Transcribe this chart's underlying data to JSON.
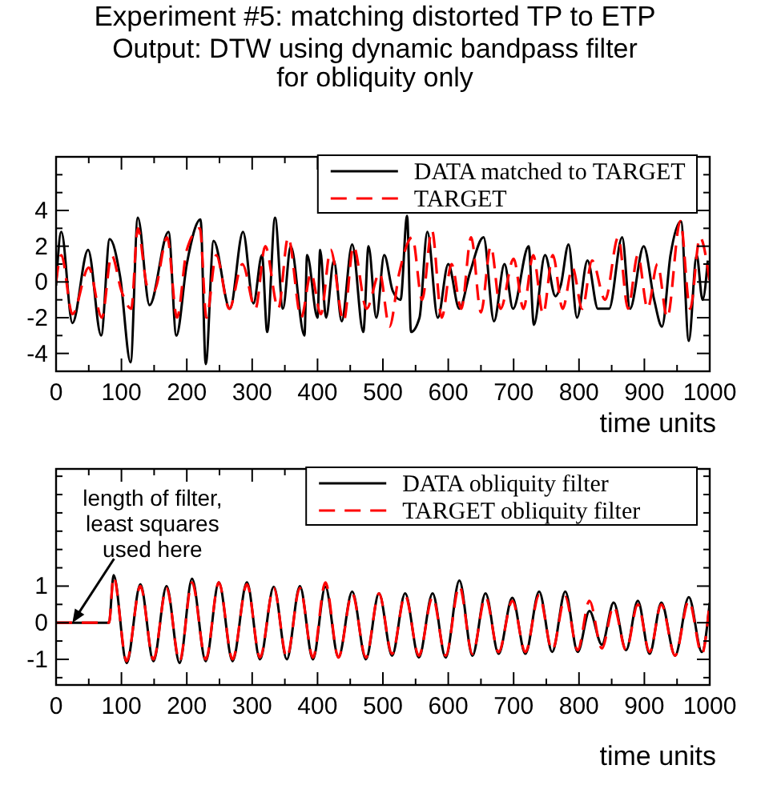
{
  "chart_data": [
    {
      "type": "line",
      "title": "Experiment #5: matching distorted TP to ETP",
      "subtitle": "Output: DTW using dynamic bandpass filter for obliquity only",
      "xlabel": "time units",
      "legend": "top right",
      "xlim": [
        0,
        1000
      ],
      "xticks": [
        0,
        {
          "value": 50,
          "label": null
        },
        100,
        {
          "value": 150,
          "label": null
        },
        200,
        {
          "value": 250,
          "label": null
        },
        300,
        {
          "value": 350,
          "label": null
        },
        400,
        {
          "value": 450,
          "label": null
        },
        500,
        {
          "value": 550,
          "label": null
        },
        600,
        {
          "value": 650,
          "label": null
        },
        700,
        {
          "value": 750,
          "label": null
        },
        800,
        {
          "value": 850,
          "label": null
        },
        900,
        {
          "value": 950,
          "label": null
        },
        1000
      ],
      "ylim": [
        -5,
        7
      ],
      "yticks": [
        {
          "value": -5,
          "label": null
        },
        -4,
        {
          "value": -3,
          "label": null
        },
        -2,
        {
          "value": -1,
          "label": null
        },
        0,
        {
          "value": 1,
          "label": null
        },
        2,
        {
          "value": 3,
          "label": null
        },
        4,
        {
          "value": 5,
          "label": null
        },
        {
          "value": 6,
          "label": null
        }
      ],
      "series": [
        {
          "name": "DATA matched to TARGET",
          "color": "#000000",
          "line_style": "solid",
          "x": [
            0,
            8,
            25,
            49,
            69,
            82,
            98,
            114,
            125,
            143,
            172,
            184,
            200,
            221,
            229,
            241,
            266,
            286,
            302,
            315,
            323,
            335,
            347,
            359,
            380,
            384,
            400,
            404,
            413,
            425,
            437,
            453,
            470,
            478,
            490,
            502,
            515,
            527,
            537,
            543,
            556,
            568,
            584,
            600,
            617,
            633,
            654,
            670,
            686,
            699,
            723,
            731,
            748,
            764,
            772,
            784,
            797,
            813,
            829,
            846,
            866,
            878,
            899,
            915,
            927,
            940,
            956,
            968,
            980,
            989,
            997
          ],
          "values": [
            -0.2,
            2.8,
            -2.3,
            1.8,
            -3,
            2.4,
            0.3,
            -4.5,
            3.6,
            -1.3,
            2.8,
            -3,
            1,
            3.5,
            -4.6,
            2.3,
            -1.5,
            2.8,
            -1.2,
            1.5,
            -2.8,
            3.6,
            -1.5,
            2,
            -3,
            1.5,
            -2,
            1.8,
            -2,
            1.2,
            -2.2,
            2.1,
            -2.8,
            2,
            -2,
            1.5,
            -0.5,
            -1,
            3.7,
            -2.8,
            -2,
            2.8,
            -2,
            1,
            -1.5,
            0.5,
            2.5,
            -2.2,
            1,
            -1.5,
            2,
            -2.4,
            1.5,
            -0.8,
            -0.2,
            2.1,
            -2,
            1.2,
            -1.5,
            -1.5,
            2.5,
            -1.5,
            2,
            -1,
            -2.5,
            1.5,
            3.4,
            -3.3,
            1.5,
            -1,
            1.2
          ]
        },
        {
          "name": "TARGET",
          "color": "#ff0000",
          "line_style": "dashed",
          "x": [
            0,
            8,
            25,
            50,
            70,
            85,
            100,
            115,
            125,
            140,
            150,
            170,
            185,
            200,
            220,
            230,
            245,
            265,
            285,
            305,
            320,
            340,
            355,
            375,
            390,
            405,
            420,
            440,
            455,
            475,
            495,
            510,
            525,
            545,
            560,
            575,
            590,
            605,
            620,
            635,
            650,
            665,
            680,
            700,
            715,
            730,
            745,
            760,
            775,
            790,
            805,
            820,
            840,
            860,
            875,
            890,
            905,
            920,
            935,
            955,
            970,
            985,
            1000
          ],
          "values": [
            0,
            1.5,
            -1.8,
            0.8,
            -2,
            1.5,
            -0.5,
            -1.5,
            3,
            -0.3,
            -0.5,
            2.5,
            -2,
            1.8,
            3,
            -2,
            1.5,
            -1.5,
            1,
            -1.5,
            2,
            -1.5,
            2.5,
            -2,
            0.5,
            -1.8,
            1.8,
            -2.2,
            2,
            -1.5,
            0.5,
            -2.5,
            0.5,
            2.5,
            -1,
            2.9,
            -2,
            1,
            -1.5,
            2.5,
            -1.7,
            2,
            -1.5,
            1.3,
            -1.5,
            1.5,
            -1.8,
            1.5,
            -1.5,
            0.8,
            -1.5,
            1.2,
            -1,
            2.5,
            -1.5,
            1.5,
            -1.5,
            1,
            -2,
            3.4,
            -1.5,
            2.5,
            0
          ]
        }
      ]
    },
    {
      "type": "line",
      "xlabel": "time units",
      "legend": "top right",
      "annotations": [
        {
          "text": "length of filter, least squares used here",
          "x": 25,
          "y": 0
        }
      ],
      "xlim": [
        0,
        1000
      ],
      "xticks": [
        0,
        {
          "value": 50,
          "label": null
        },
        100,
        {
          "value": 150,
          "label": null
        },
        200,
        {
          "value": 250,
          "label": null
        },
        300,
        {
          "value": 350,
          "label": null
        },
        400,
        {
          "value": 450,
          "label": null
        },
        500,
        {
          "value": 550,
          "label": null
        },
        600,
        {
          "value": 650,
          "label": null
        },
        700,
        {
          "value": 750,
          "label": null
        },
        800,
        {
          "value": 850,
          "label": null
        },
        900,
        {
          "value": 950,
          "label": null
        },
        1000
      ],
      "ylim": [
        -1.7,
        4.2
      ],
      "yticks": [
        {
          "value": -1.5,
          "label": null
        },
        -1,
        {
          "value": -0.5,
          "label": null
        },
        0,
        {
          "value": 0.5,
          "label": null
        },
        1,
        {
          "value": 1.5,
          "label": null
        },
        {
          "value": 2,
          "label": null
        },
        {
          "value": 2.5,
          "label": null
        },
        {
          "value": 3,
          "label": null
        },
        {
          "value": 3.5,
          "label": null
        },
        {
          "value": 4,
          "label": null
        }
      ],
      "series": [
        {
          "name": "DATA obliquity filter",
          "color": "#000000",
          "line_style": "solid",
          "x": [
            0,
            81,
            88,
            108,
            129,
            149,
            169,
            189,
            208,
            229,
            249,
            270,
            292,
            312,
            333,
            353,
            373,
            393,
            412,
            432,
            453,
            474,
            494,
            514,
            534,
            555,
            576,
            596,
            617,
            637,
            657,
            677,
            698,
            718,
            739,
            759,
            779,
            798,
            816,
            835,
            853,
            872,
            890,
            908,
            926,
            947,
            968,
            988,
            1000
          ],
          "values": [
            0,
            0,
            1.3,
            -1.1,
            1.05,
            -1.05,
            1.0,
            -1.1,
            1.2,
            -1.05,
            1.1,
            -1.05,
            1.1,
            -1.0,
            0.98,
            -1.0,
            1.0,
            -1.0,
            0.98,
            -0.95,
            0.85,
            -1.0,
            0.8,
            -0.9,
            0.8,
            -0.95,
            0.8,
            -0.95,
            1.15,
            -0.9,
            0.8,
            -0.85,
            0.68,
            -0.85,
            0.85,
            -0.8,
            0.85,
            -0.8,
            0.32,
            -0.6,
            0.55,
            -0.75,
            0.6,
            -0.85,
            0.55,
            -0.9,
            0.7,
            -0.8,
            0.55
          ]
        },
        {
          "name": "TARGET obliquity filter",
          "color": "#ff0000",
          "line_style": "dashed",
          "x": [
            0,
            81,
            88,
            108,
            129,
            149,
            169,
            189,
            208,
            229,
            249,
            270,
            292,
            312,
            333,
            353,
            373,
            393,
            412,
            432,
            453,
            474,
            494,
            514,
            534,
            555,
            576,
            596,
            617,
            637,
            657,
            677,
            698,
            718,
            739,
            759,
            779,
            798,
            816,
            835,
            853,
            872,
            890,
            908,
            926,
            947,
            968,
            988,
            1000
          ],
          "values": [
            0,
            0,
            1.25,
            -1.05,
            1.0,
            -1.0,
            0.95,
            -1.05,
            1.1,
            -1.0,
            1.1,
            -1.0,
            1.05,
            -0.95,
            0.95,
            -0.95,
            0.95,
            -0.95,
            1.1,
            -0.95,
            0.8,
            -0.95,
            0.8,
            -0.85,
            0.75,
            -0.9,
            0.7,
            -0.9,
            1.0,
            -0.85,
            0.7,
            -0.8,
            0.6,
            -0.8,
            0.75,
            -0.75,
            0.7,
            -0.75,
            0.6,
            -0.7,
            0.45,
            -0.75,
            0.5,
            -0.8,
            0.5,
            -0.9,
            0.6,
            -0.85,
            0.6
          ]
        }
      ]
    }
  ]
}
